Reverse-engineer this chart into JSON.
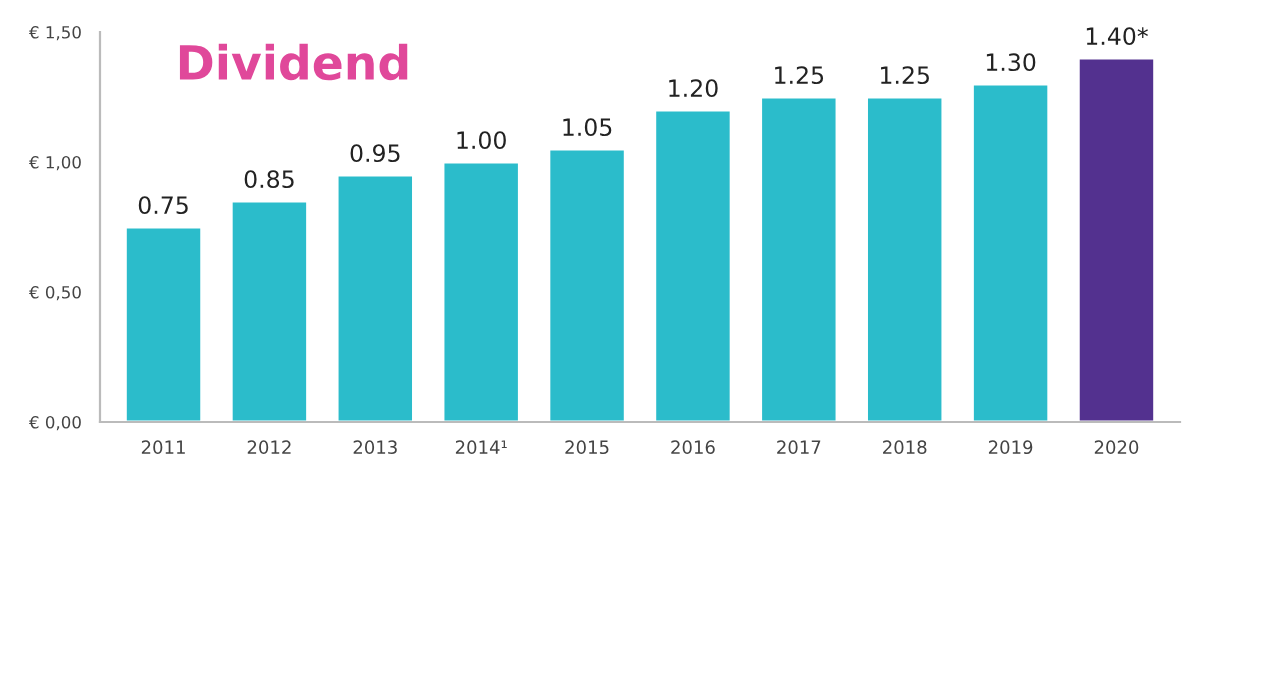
{
  "chart_data": {
    "type": "bar",
    "title": "Dividend",
    "categories": [
      "2011",
      "2012",
      "2013",
      "2014¹",
      "2015",
      "2016",
      "2017",
      "2018",
      "2019",
      "2020"
    ],
    "values": [
      0.75,
      0.85,
      0.95,
      1.0,
      1.05,
      1.2,
      1.25,
      1.25,
      1.3,
      1.4
    ],
    "colors": [
      "#2bbccb",
      "#2bbccb",
      "#2bbccb",
      "#2bbccb",
      "#2bbccb",
      "#2bbccb",
      "#2bbccb",
      "#2bbccb",
      "#2bbccb",
      "#53318f"
    ],
    "value_labels": [
      "0.75",
      "0.85",
      "0.95",
      "1.00",
      "1.05",
      "1.20",
      "1.25",
      "1.25",
      "1.30",
      "1.40*"
    ],
    "ylim": [
      0,
      1.5
    ],
    "yticks": [
      {
        "value": 0,
        "label": "€ 0,00"
      },
      {
        "value": 0.5,
        "label": "€ 0,50"
      },
      {
        "value": 1.0,
        "label": "€ 1,00"
      },
      {
        "value": 1.5,
        "label": "€ 1,50"
      }
    ],
    "grid": false,
    "legend": false
  }
}
